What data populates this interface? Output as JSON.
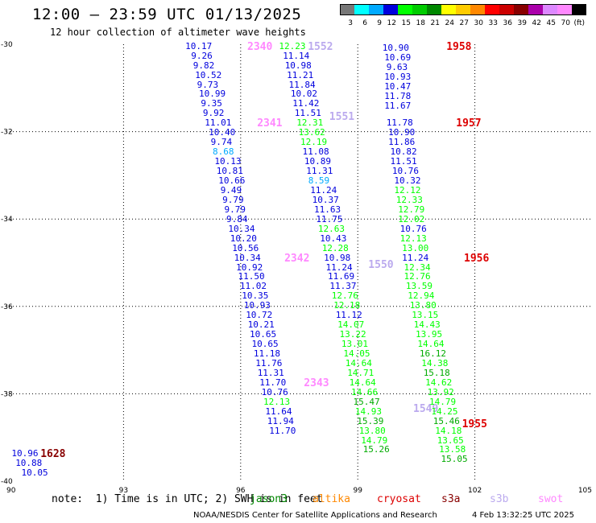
{
  "header": {
    "title": "12:00 – 23:59 UTC 01/13/2025",
    "subtitle": "12 hour collection of altimeter wave heights"
  },
  "legend": {
    "labels": [
      "3",
      "6",
      "9",
      "12",
      "15",
      "18",
      "21",
      "24",
      "27",
      "30",
      "33",
      "36",
      "39",
      "42",
      "45",
      "70",
      "(ft)"
    ],
    "colors": [
      "#777777",
      "#00ffff",
      "#00aaff",
      "#0000dd",
      "#00ff00",
      "#00cc00",
      "#008800",
      "#ffff00",
      "#ffcc00",
      "#ff8800",
      "#ff0000",
      "#cc0000",
      "#880000",
      "#aa00aa",
      "#dd88ff",
      "#ff88ff",
      "#000000"
    ]
  },
  "axes": {
    "x_ticks": [
      "90",
      "93",
      "96",
      "99",
      "102",
      "105"
    ],
    "y_ticks": [
      "-30",
      "-32",
      "-34",
      "-36",
      "-38",
      "-40"
    ],
    "x_range": [
      90,
      105
    ],
    "y_range": [
      -30,
      -40
    ]
  },
  "tracks": [
    {
      "pass": "2340",
      "pass_color": "#ff88ff",
      "pass_lon": 96.5,
      "pass_lat": -30.05,
      "points": [
        {
          "v": "10.17",
          "lon": 94.85,
          "lat": -30.05,
          "c": "#0000dd"
        },
        {
          "v": "9.26",
          "lon": 95.0,
          "lat": -30.27,
          "c": "#0000dd"
        },
        {
          "v": "9.82",
          "lon": 95.05,
          "lat": -30.49,
          "c": "#0000dd"
        },
        {
          "v": "10.52",
          "lon": 95.1,
          "lat": -30.71,
          "c": "#0000dd"
        },
        {
          "v": "9.73",
          "lon": 95.15,
          "lat": -30.93,
          "c": "#0000dd"
        },
        {
          "v": "10.99",
          "lon": 95.2,
          "lat": -31.15,
          "c": "#0000dd"
        },
        {
          "v": "9.35",
          "lon": 95.25,
          "lat": -31.37,
          "c": "#0000dd"
        },
        {
          "v": "9.92",
          "lon": 95.3,
          "lat": -31.59,
          "c": "#0000dd"
        },
        {
          "v": "11.01",
          "lon": 95.35,
          "lat": -31.81,
          "c": "#0000dd"
        }
      ]
    },
    {
      "pass": "2341",
      "pass_color": "#ff88ff",
      "pass_lon": 96.75,
      "pass_lat": -31.81,
      "points": [
        {
          "v": "10.40",
          "lon": 95.45,
          "lat": -32.03,
          "c": "#0000dd"
        },
        {
          "v": "9.74",
          "lon": 95.5,
          "lat": -32.25,
          "c": "#0000dd"
        },
        {
          "v": "8.68",
          "lon": 95.55,
          "lat": -32.47,
          "c": "#00aaff"
        },
        {
          "v": "10.13",
          "lon": 95.6,
          "lat": -32.69,
          "c": "#0000dd"
        },
        {
          "v": "10.81",
          "lon": 95.65,
          "lat": -32.91,
          "c": "#0000dd"
        },
        {
          "v": "10.66",
          "lon": 95.7,
          "lat": -33.13,
          "c": "#0000dd"
        },
        {
          "v": "9.49",
          "lon": 95.75,
          "lat": -33.35,
          "c": "#0000dd"
        },
        {
          "v": "9.79",
          "lon": 95.8,
          "lat": -33.57,
          "c": "#0000dd"
        },
        {
          "v": "9.79",
          "lon": 95.85,
          "lat": -33.79,
          "c": "#0000dd"
        },
        {
          "v": "9.84",
          "lon": 95.9,
          "lat": -34.01,
          "c": "#0000dd"
        },
        {
          "v": "10.34",
          "lon": 95.95,
          "lat": -34.23,
          "c": "#0000dd"
        },
        {
          "v": "10.20",
          "lon": 96.0,
          "lat": -34.45,
          "c": "#0000dd"
        },
        {
          "v": "10.56",
          "lon": 96.05,
          "lat": -34.67,
          "c": "#0000dd"
        },
        {
          "v": "10.34",
          "lon": 96.1,
          "lat": -34.89,
          "c": "#0000dd"
        }
      ]
    },
    {
      "pass": "2342",
      "pass_color": "#ff88ff",
      "pass_lon": 97.45,
      "pass_lat": -34.89,
      "points": [
        {
          "v": "10.92",
          "lon": 96.15,
          "lat": -35.11,
          "c": "#0000dd"
        },
        {
          "v": "11.50",
          "lon": 96.2,
          "lat": -35.33,
          "c": "#0000dd"
        },
        {
          "v": "11.02",
          "lon": 96.25,
          "lat": -35.55,
          "c": "#0000dd"
        },
        {
          "v": "10.35",
          "lon": 96.3,
          "lat": -35.77,
          "c": "#0000dd"
        },
        {
          "v": "10.93",
          "lon": 96.35,
          "lat": -35.99,
          "c": "#0000dd"
        },
        {
          "v": "10.72",
          "lon": 96.4,
          "lat": -36.21,
          "c": "#0000dd"
        },
        {
          "v": "10.21",
          "lon": 96.45,
          "lat": -36.43,
          "c": "#0000dd"
        },
        {
          "v": "10.65",
          "lon": 96.5,
          "lat": -36.65,
          "c": "#0000dd"
        },
        {
          "v": "10.65",
          "lon": 96.55,
          "lat": -36.87,
          "c": "#0000dd"
        },
        {
          "v": "11.18",
          "lon": 96.6,
          "lat": -37.09,
          "c": "#0000dd"
        },
        {
          "v": "11.76",
          "lon": 96.65,
          "lat": -37.31,
          "c": "#0000dd"
        },
        {
          "v": "11.31",
          "lon": 96.7,
          "lat": -37.53,
          "c": "#0000dd"
        },
        {
          "v": "11.70",
          "lon": 96.75,
          "lat": -37.75,
          "c": "#0000dd"
        }
      ]
    },
    {
      "pass": "2343",
      "pass_color": "#ff88ff",
      "pass_lon": 97.95,
      "pass_lat": -37.75,
      "points": [
        {
          "v": "10.76",
          "lon": 96.8,
          "lat": -37.97,
          "c": "#0000dd"
        },
        {
          "v": "12.13",
          "lon": 96.85,
          "lat": -38.19,
          "c": "#00ff00"
        },
        {
          "v": "11.64",
          "lon": 96.9,
          "lat": -38.41,
          "c": "#0000dd"
        },
        {
          "v": "11.94",
          "lon": 96.95,
          "lat": -38.63,
          "c": "#0000dd"
        },
        {
          "v": "11.70",
          "lon": 97.0,
          "lat": -38.85,
          "c": "#0000dd"
        }
      ]
    },
    {
      "pass": "1552",
      "pass_color": "#bbaaee",
      "pass_lon": 98.05,
      "pass_lat": -30.05,
      "points": [
        {
          "v": "12.23",
          "lon": 97.25,
          "lat": -30.05,
          "c": "#00ff00"
        },
        {
          "v": "11.14",
          "lon": 97.35,
          "lat": -30.27,
          "c": "#0000dd"
        },
        {
          "v": "10.98",
          "lon": 97.4,
          "lat": -30.49,
          "c": "#0000dd"
        },
        {
          "v": "11.21",
          "lon": 97.45,
          "lat": -30.71,
          "c": "#0000dd"
        },
        {
          "v": "11.84",
          "lon": 97.5,
          "lat": -30.93,
          "c": "#0000dd"
        },
        {
          "v": "10.02",
          "lon": 97.55,
          "lat": -31.15,
          "c": "#0000dd"
        },
        {
          "v": "11.42",
          "lon": 97.6,
          "lat": -31.37,
          "c": "#0000dd"
        },
        {
          "v": "11.51",
          "lon": 97.65,
          "lat": -31.59,
          "c": "#0000dd"
        }
      ]
    },
    {
      "pass": "1551",
      "pass_color": "#bbaaee",
      "pass_lon": 98.6,
      "pass_lat": -31.65,
      "points": [
        {
          "v": "12.31",
          "lon": 97.7,
          "lat": -31.81,
          "c": "#00ff00"
        },
        {
          "v": "13.62",
          "lon": 97.75,
          "lat": -32.03,
          "c": "#00ff00"
        },
        {
          "v": "12.19",
          "lon": 97.8,
          "lat": -32.25,
          "c": "#00ff00"
        },
        {
          "v": "11.08",
          "lon": 97.85,
          "lat": -32.47,
          "c": "#0000dd"
        },
        {
          "v": "10.89",
          "lon": 97.9,
          "lat": -32.69,
          "c": "#0000dd"
        },
        {
          "v": "11.31",
          "lon": 97.95,
          "lat": -32.91,
          "c": "#0000dd"
        },
        {
          "v": "8.59",
          "lon": 98.0,
          "lat": -33.13,
          "c": "#00aaff"
        },
        {
          "v": "11.24",
          "lon": 98.05,
          "lat": -33.35,
          "c": "#0000dd"
        },
        {
          "v": "10.37",
          "lon": 98.1,
          "lat": -33.57,
          "c": "#0000dd"
        },
        {
          "v": "11.63",
          "lon": 98.15,
          "lat": -33.79,
          "c": "#0000dd"
        },
        {
          "v": "11.75",
          "lon": 98.2,
          "lat": -34.01,
          "c": "#0000dd"
        },
        {
          "v": "12.63",
          "lon": 98.25,
          "lat": -34.23,
          "c": "#00ff00"
        },
        {
          "v": "10.43",
          "lon": 98.3,
          "lat": -34.45,
          "c": "#0000dd"
        },
        {
          "v": "12.28",
          "lon": 98.35,
          "lat": -34.67,
          "c": "#00ff00"
        },
        {
          "v": "10.98",
          "lon": 98.4,
          "lat": -34.89,
          "c": "#0000dd"
        },
        {
          "v": "11.24",
          "lon": 98.45,
          "lat": -35.11,
          "c": "#0000dd"
        }
      ]
    },
    {
      "pass": "1550",
      "pass_color": "#bbaaee",
      "pass_lon": 99.6,
      "pass_lat": -35.05,
      "points": [
        {
          "v": "11.69",
          "lon": 98.5,
          "lat": -35.33,
          "c": "#0000dd"
        },
        {
          "v": "11.37",
          "lon": 98.55,
          "lat": -35.55,
          "c": "#0000dd"
        },
        {
          "v": "12.76",
          "lon": 98.6,
          "lat": -35.77,
          "c": "#00ff00"
        },
        {
          "v": "12.18",
          "lon": 98.65,
          "lat": -35.99,
          "c": "#00ff00"
        },
        {
          "v": "11.12",
          "lon": 98.7,
          "lat": -36.21,
          "c": "#0000dd"
        },
        {
          "v": "14.07",
          "lon": 98.75,
          "lat": -36.43,
          "c": "#00ff00"
        },
        {
          "v": "13.22",
          "lon": 98.8,
          "lat": -36.65,
          "c": "#00ff00"
        },
        {
          "v": "13.01",
          "lon": 98.85,
          "lat": -36.87,
          "c": "#00ff00"
        },
        {
          "v": "14.05",
          "lon": 98.9,
          "lat": -37.09,
          "c": "#00ff00"
        },
        {
          "v": "14.64",
          "lon": 98.95,
          "lat": -37.31,
          "c": "#00ff00"
        },
        {
          "v": "14.71",
          "lon": 99.0,
          "lat": -37.53,
          "c": "#00ff00"
        },
        {
          "v": "14.64",
          "lon": 99.05,
          "lat": -37.75,
          "c": "#00ff00"
        },
        {
          "v": "14.66",
          "lon": 99.1,
          "lat": -37.97,
          "c": "#00ff00"
        },
        {
          "v": "15.47",
          "lon": 99.15,
          "lat": -38.19,
          "c": "#00aa00"
        }
      ]
    },
    {
      "pass": "1549",
      "pass_color": "#bbaaee",
      "pass_lon": 100.75,
      "pass_lat": -38.35,
      "points": [
        {
          "v": "14.93",
          "lon": 99.2,
          "lat": -38.41,
          "c": "#00ff00"
        },
        {
          "v": "15.39",
          "lon": 99.25,
          "lat": -38.63,
          "c": "#00aa00"
        },
        {
          "v": "13.80",
          "lon": 99.3,
          "lat": -38.85,
          "c": "#00ff00"
        },
        {
          "v": "14.79",
          "lon": 99.35,
          "lat": -39.07,
          "c": "#00ff00"
        },
        {
          "v": "15.26",
          "lon": 99.4,
          "lat": -39.29,
          "c": "#00aa00"
        }
      ]
    },
    {
      "pass": "1958",
      "pass_color": "#dd0000",
      "pass_lon": 101.6,
      "pass_lat": -30.05,
      "points": [
        {
          "v": "10.90",
          "lon": 99.9,
          "lat": -30.1,
          "c": "#0000dd"
        },
        {
          "v": "10.69",
          "lon": 99.95,
          "lat": -30.32,
          "c": "#0000dd"
        },
        {
          "v": "9.63",
          "lon": 100.0,
          "lat": -30.54,
          "c": "#0000dd"
        },
        {
          "v": "10.93",
          "lon": 99.95,
          "lat": -30.76,
          "c": "#0000dd"
        },
        {
          "v": "10.47",
          "lon": 99.95,
          "lat": -30.98,
          "c": "#0000dd"
        },
        {
          "v": "11.78",
          "lon": 99.95,
          "lat": -31.2,
          "c": "#0000dd"
        },
        {
          "v": "11.67",
          "lon": 99.95,
          "lat": -31.42,
          "c": "#0000dd"
        }
      ]
    },
    {
      "pass": "1957",
      "pass_color": "#dd0000",
      "pass_lon": 101.85,
      "pass_lat": -31.81,
      "points": [
        {
          "v": "11.78",
          "lon": 100.0,
          "lat": -31.81,
          "c": "#0000dd"
        },
        {
          "v": "10.90",
          "lon": 100.05,
          "lat": -32.03,
          "c": "#0000dd"
        },
        {
          "v": "11.86",
          "lon": 100.05,
          "lat": -32.25,
          "c": "#0000dd"
        },
        {
          "v": "10.82",
          "lon": 100.1,
          "lat": -32.47,
          "c": "#0000dd"
        },
        {
          "v": "11.51",
          "lon": 100.1,
          "lat": -32.69,
          "c": "#0000dd"
        },
        {
          "v": "10.76",
          "lon": 100.15,
          "lat": -32.91,
          "c": "#0000dd"
        },
        {
          "v": "10.32",
          "lon": 100.2,
          "lat": -33.13,
          "c": "#0000dd"
        },
        {
          "v": "12.12",
          "lon": 100.2,
          "lat": -33.35,
          "c": "#00ff00"
        },
        {
          "v": "12.33",
          "lon": 100.25,
          "lat": -33.57,
          "c": "#00ff00"
        },
        {
          "v": "12.79",
          "lon": 100.3,
          "lat": -33.79,
          "c": "#00ff00"
        },
        {
          "v": "12.02",
          "lon": 100.3,
          "lat": -34.01,
          "c": "#00ff00"
        },
        {
          "v": "10.76",
          "lon": 100.35,
          "lat": -34.23,
          "c": "#0000dd"
        },
        {
          "v": "12.13",
          "lon": 100.35,
          "lat": -34.45,
          "c": "#00ff00"
        },
        {
          "v": "13.00",
          "lon": 100.4,
          "lat": -34.67,
          "c": "#00ff00"
        },
        {
          "v": "11.24",
          "lon": 100.4,
          "lat": -34.89,
          "c": "#0000dd"
        },
        {
          "v": "12.34",
          "lon": 100.45,
          "lat": -35.11,
          "c": "#00ff00"
        }
      ]
    },
    {
      "pass": "1956",
      "pass_color": "#dd0000",
      "pass_lon": 102.05,
      "pass_lat": -34.89,
      "points": [
        {
          "v": "12.76",
          "lon": 100.45,
          "lat": -35.33,
          "c": "#00ff00"
        },
        {
          "v": "13.59",
          "lon": 100.5,
          "lat": -35.55,
          "c": "#00ff00"
        },
        {
          "v": "12.94",
          "lon": 100.55,
          "lat": -35.77,
          "c": "#00ff00"
        },
        {
          "v": "13.80",
          "lon": 100.6,
          "lat": -35.99,
          "c": "#00ff00"
        },
        {
          "v": "13.15",
          "lon": 100.65,
          "lat": -36.21,
          "c": "#00ff00"
        },
        {
          "v": "14.43",
          "lon": 100.7,
          "lat": -36.43,
          "c": "#00ff00"
        },
        {
          "v": "13.95",
          "lon": 100.75,
          "lat": -36.65,
          "c": "#00ff00"
        },
        {
          "v": "14.64",
          "lon": 100.8,
          "lat": -36.87,
          "c": "#00ff00"
        },
        {
          "v": "16.12",
          "lon": 100.85,
          "lat": -37.09,
          "c": "#00aa00"
        },
        {
          "v": "14.38",
          "lon": 100.9,
          "lat": -37.31,
          "c": "#00ff00"
        },
        {
          "v": "15.18",
          "lon": 100.95,
          "lat": -37.53,
          "c": "#00aa00"
        },
        {
          "v": "14.62",
          "lon": 101.0,
          "lat": -37.75,
          "c": "#00ff00"
        },
        {
          "v": "13.92",
          "lon": 101.05,
          "lat": -37.97,
          "c": "#00ff00"
        },
        {
          "v": "14.79",
          "lon": 101.1,
          "lat": -38.19,
          "c": "#00ff00"
        },
        {
          "v": "14.25",
          "lon": 101.15,
          "lat": -38.41,
          "c": "#00ff00"
        }
      ]
    },
    {
      "pass": "1955",
      "pass_color": "#dd0000",
      "pass_lon": 102.0,
      "pass_lat": -38.7,
      "points": [
        {
          "v": "15.46",
          "lon": 101.2,
          "lat": -38.63,
          "c": "#00aa00"
        },
        {
          "v": "14.18",
          "lon": 101.25,
          "lat": -38.85,
          "c": "#00ff00"
        },
        {
          "v": "13.65",
          "lon": 101.3,
          "lat": -39.07,
          "c": "#00ff00"
        },
        {
          "v": "13.58",
          "lon": 101.35,
          "lat": -39.29,
          "c": "#00ff00"
        },
        {
          "v": "15.05",
          "lon": 101.4,
          "lat": -39.51,
          "c": "#00aa00"
        }
      ]
    },
    {
      "pass": "1628",
      "pass_color": "#880000",
      "pass_lon": 91.2,
      "pass_lat": -39.38,
      "points": [
        {
          "v": "10.96",
          "lon": 90.4,
          "lat": -39.38,
          "c": "#0000dd"
        },
        {
          "v": "10.88",
          "lon": 90.5,
          "lat": -39.6,
          "c": "#0000dd"
        },
        {
          "v": "10.05",
          "lon": 90.65,
          "lat": -39.82,
          "c": "#0000dd"
        }
      ]
    }
  ],
  "footer": {
    "note": "note:  1) Time is in UTC; 2) SWH is in feet",
    "missions": [
      {
        "name": "jason3",
        "color": "#008800"
      },
      {
        "name": "altika",
        "color": "#ff8800"
      },
      {
        "name": "cryosat",
        "color": "#dd0000"
      },
      {
        "name": "s3a",
        "color": "#880000"
      },
      {
        "name": "s3b",
        "color": "#bbaaee"
      },
      {
        "name": "swot",
        "color": "#ff88ff"
      }
    ],
    "credit": "NOAA/NESDIS Center for Satellite Applications and Research",
    "timestamp": "4 Feb 13:32:25 UTC 2025"
  }
}
